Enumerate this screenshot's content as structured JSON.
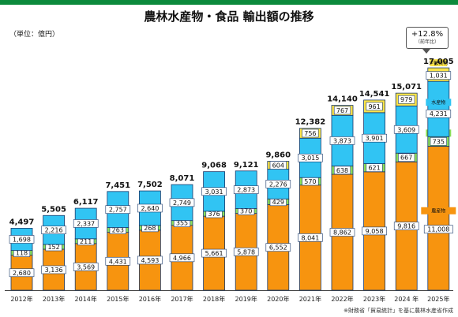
{
  "title": "農林水産物・食品 輸出額の推移",
  "unit_label": "（単位：億円）",
  "source_note": "※財務省「貿易統計」を基に農林水産省作成",
  "callout": {
    "value": "+12.8%",
    "note": "（前年比）"
  },
  "colors": {
    "agri": "#f7940f",
    "forest": "#8de05a",
    "fish": "#31c4f3",
    "small": "#fde449",
    "border": "#1a3a6b",
    "axis": "#444444",
    "header": "#0c8a3c"
  },
  "chart_data": {
    "type": "bar",
    "stacked": true,
    "categories": [
      "2012年",
      "2013年",
      "2014年",
      "2015年",
      "2016年",
      "2017年",
      "2018年",
      "2019年",
      "2020年",
      "2021年",
      "2022年",
      "2023年",
      "2024 年",
      "2025年"
    ],
    "totals": [
      4497,
      5505,
      6117,
      7451,
      7502,
      8071,
      9068,
      9121,
      9860,
      12382,
      14140,
      14541,
      15071,
      17005
    ],
    "total_labels": [
      "4,497",
      "5,505",
      "6,117",
      "7,451",
      "7,502",
      "8,071",
      "9,068",
      "9,121",
      "9,860",
      "12,382",
      "14,140",
      "14,541",
      "15,071",
      "17,005"
    ],
    "series": [
      {
        "key": "agri",
        "name": "農産物",
        "values": [
          2680,
          3136,
          3569,
          4431,
          4593,
          4966,
          5661,
          5878,
          6552,
          8041,
          8862,
          9058,
          9816,
          11008
        ],
        "labels": [
          "2,680",
          "3,136",
          "3,569",
          "4,431",
          "4,593",
          "4,966",
          "5,661",
          "5,878",
          "6,552",
          "8,041",
          "8,862",
          "9,058",
          "9,816",
          "11,008"
        ]
      },
      {
        "key": "forest",
        "name": "林産物",
        "values": [
          118,
          152,
          211,
          263,
          268,
          355,
          376,
          370,
          429,
          570,
          638,
          621,
          667,
          735
        ],
        "labels": [
          "118",
          "152",
          "211",
          "263",
          "268",
          "355",
          "376",
          "370",
          "429",
          "570",
          "638",
          "621",
          "667",
          "735"
        ]
      },
      {
        "key": "fish",
        "name": "水産物",
        "values": [
          1698,
          2216,
          2337,
          2757,
          2640,
          2749,
          3031,
          2873,
          2276,
          3015,
          3873,
          3901,
          3609,
          4231
        ],
        "labels": [
          "1,698",
          "2,216",
          "2,337",
          "2,757",
          "2,640",
          "2,749",
          "3,031",
          "2,873",
          "2,276",
          "3,015",
          "3,873",
          "3,901",
          "3,609",
          "4,231"
        ]
      },
      {
        "key": "small",
        "name": "少額貨物",
        "values": [
          0,
          0,
          0,
          0,
          0,
          0,
          0,
          0,
          604,
          756,
          767,
          961,
          979,
          1031
        ],
        "labels": [
          "",
          "",
          "",
          "",
          "",
          "",
          "",
          "",
          "604",
          "756",
          "767",
          "961",
          "979",
          "1,031"
        ]
      }
    ]
  }
}
